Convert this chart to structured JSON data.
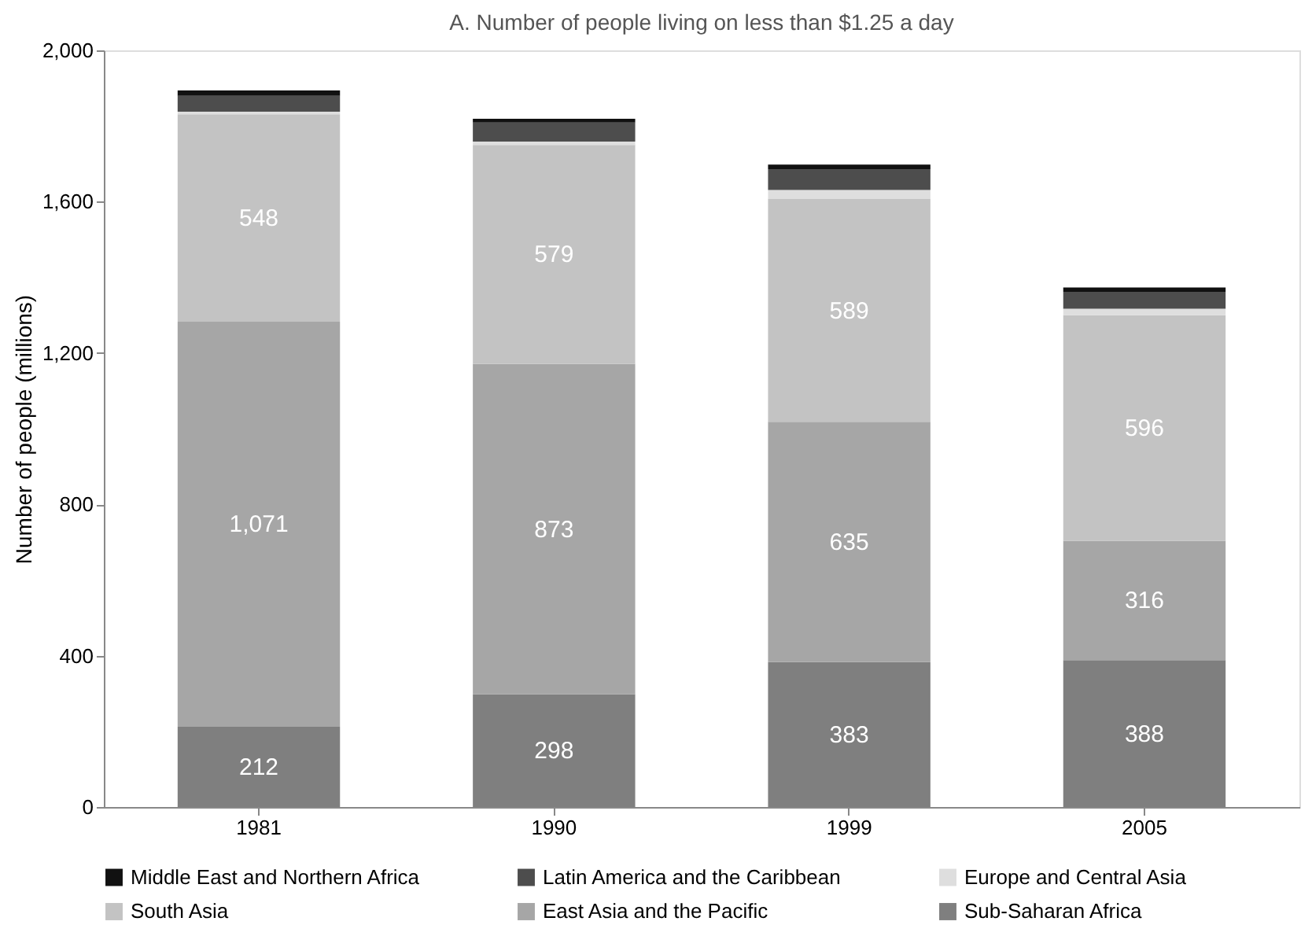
{
  "chart_data": {
    "type": "bar",
    "stacked": true,
    "title": "A.    Number of people living on less than $1.25 a day",
    "ylabel": "Number of people  (millions)",
    "categories": [
      "1981",
      "1990",
      "1999",
      "2005"
    ],
    "ylim": [
      0,
      2000
    ],
    "yticks": [
      0,
      {
        "value": 400,
        "label": "400"
      },
      {
        "value": 800,
        "label": "800"
      },
      {
        "value": 1200,
        "label": "1,200"
      },
      {
        "value": 1600,
        "label": "1,600"
      },
      {
        "value": 2000,
        "label": "2,000"
      }
    ],
    "grid": false,
    "legend": "bottom",
    "series": [
      {
        "name": "Sub-Saharan Africa",
        "color": "#7f7f7f",
        "values": [
          212,
          298,
          383,
          388
        ],
        "value_labels": [
          "212",
          "298",
          "383",
          "388"
        ]
      },
      {
        "name": "East Asia and the Pacific",
        "color": "#a6a6a6",
        "values": [
          1071,
          873,
          635,
          316
        ],
        "value_labels": [
          "1,071",
          "873",
          "635",
          "316"
        ]
      },
      {
        "name": "South Asia",
        "color": "#c3c3c3",
        "values": [
          548,
          579,
          589,
          596
        ],
        "value_labels": [
          "548",
          "579",
          "589",
          "596"
        ]
      },
      {
        "name": "Europe and Central Asia",
        "color": "#dedede",
        "values": [
          7,
          9,
          24,
          17
        ]
      },
      {
        "name": "Latin America and the Caribbean",
        "color": "#4d4d4d",
        "values": [
          42,
          50,
          55,
          45
        ]
      },
      {
        "name": "Middle East and Northern Africa",
        "color": "#111111",
        "values": [
          14,
          10,
          12,
          11
        ]
      }
    ]
  }
}
